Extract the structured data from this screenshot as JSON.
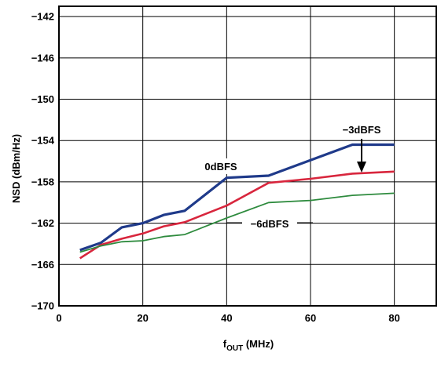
{
  "chart_data": {
    "type": "line",
    "xlabel_main": "f",
    "xlabel_sub": "OUT",
    "xlabel_unit": " (MHz)",
    "ylabel": "NSD (dBm/Hz)",
    "xlim": [
      0,
      90
    ],
    "ylim": [
      -170,
      -141
    ],
    "x_ticks": [
      0,
      20,
      40,
      60,
      80
    ],
    "x_tick_labels": [
      "0",
      "20",
      "40",
      "60",
      "80"
    ],
    "y_ticks": [
      -170,
      -166,
      -162,
      -158,
      -154,
      -150,
      -146,
      -142
    ],
    "y_tick_labels": [
      "−170",
      "−166",
      "−162",
      "−158",
      "−154",
      "−150",
      "−146",
      "−142"
    ],
    "grid": true,
    "series": [
      {
        "name": "0dBFS",
        "color": "#1f3a8a",
        "x": [
          5,
          10,
          15,
          20,
          25,
          30,
          40,
          50,
          60,
          70,
          80
        ],
        "y": [
          -164.6,
          -163.9,
          -162.4,
          -162.0,
          -161.2,
          -160.8,
          -157.6,
          -157.4,
          -155.9,
          -154.4,
          -154.4
        ]
      },
      {
        "name": "−3dBFS",
        "color": "#d8263d",
        "x": [
          5,
          10,
          15,
          20,
          25,
          30,
          40,
          50,
          60,
          70,
          80
        ],
        "y": [
          -165.4,
          -164.1,
          -163.5,
          -163.0,
          -162.3,
          -161.9,
          -160.3,
          -158.1,
          -157.7,
          -157.2,
          -157.0
        ]
      },
      {
        "name": "−6dBFS",
        "color": "#2e8b3e",
        "x": [
          5,
          10,
          15,
          20,
          25,
          30,
          40,
          50,
          60,
          70,
          80
        ],
        "y": [
          -164.8,
          -164.2,
          -163.8,
          -163.7,
          -163.3,
          -163.1,
          -161.5,
          -160.0,
          -159.8,
          -159.3,
          -159.1
        ]
      }
    ],
    "annotations": [
      {
        "text": "0dBFS"
      },
      {
        "text": "−3dBFS"
      },
      {
        "text": "−6dBFS"
      }
    ]
  }
}
